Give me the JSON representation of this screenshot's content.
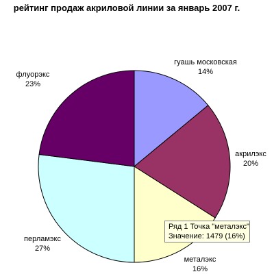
{
  "chart_data": {
    "type": "pie",
    "title": "рейтинг продаж акриловой линии за январь 2007 г.",
    "slices": [
      {
        "label": "гуашь московская",
        "percent_label": "14%",
        "value": 14,
        "color": "#9999ff"
      },
      {
        "label": "акрилэкс",
        "percent_label": "20%",
        "value": 20,
        "color": "#993366"
      },
      {
        "label": "металэкс",
        "percent_label": "16%",
        "value": 16,
        "color": "#ffffcc"
      },
      {
        "label": "перламэкс",
        "percent_label": "27%",
        "value": 27,
        "color": "#ccffff"
      },
      {
        "label": "флуорэкс",
        "percent_label": "23%",
        "value": 23,
        "color": "#660066"
      }
    ],
    "legend": "none"
  },
  "tooltip": {
    "line1": "Ряд 1 Точка \"металэкс\"",
    "line2": "Значение: 1479 (16%)"
  }
}
